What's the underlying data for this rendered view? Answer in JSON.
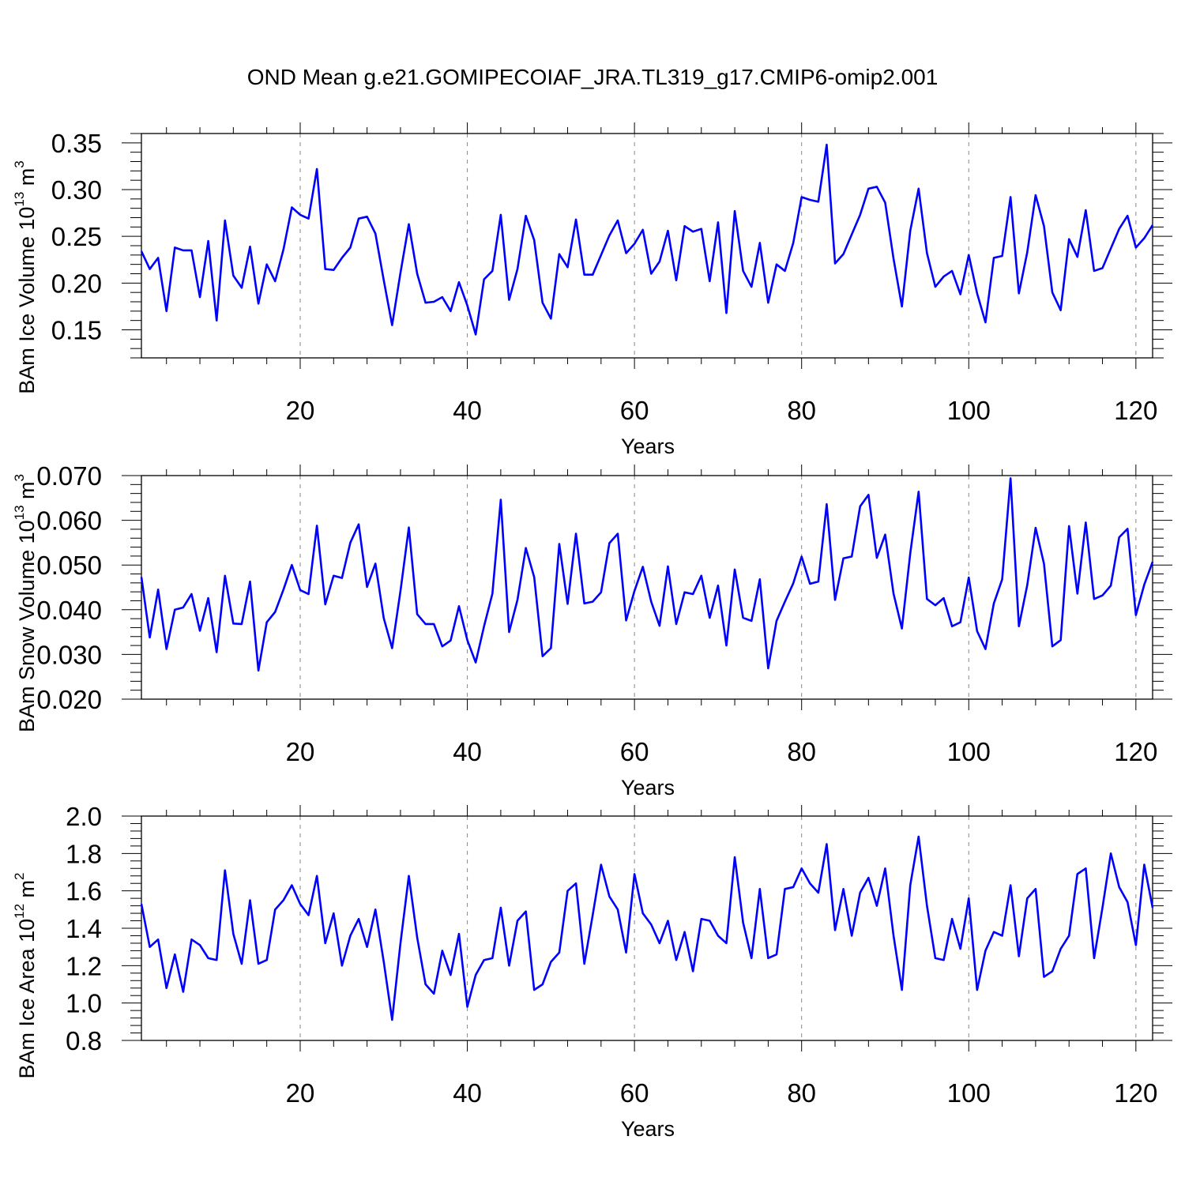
{
  "chart_data": [
    {
      "type": "line",
      "title": "OND Mean g.e21.GOMIPECOIAF_JRA.TL319_g17.CMIP6-omip2.001",
      "xlabel": "Years",
      "ylabel": {
        "main": "BAm Ice Volume 10",
        "exp": "13",
        "unit": " m",
        "unit_exp": "3"
      },
      "xlim": [
        1,
        122
      ],
      "ylim": [
        0.12,
        0.36
      ],
      "xticks": [
        "20",
        "40",
        "60",
        "80",
        "100",
        "120"
      ],
      "yticks": [
        "0.15",
        "0.20",
        "0.25",
        "0.30",
        "0.35"
      ],
      "grid": "dashed vertical at major x ticks",
      "series": [
        {
          "name": "BAm Ice Volume",
          "color": "#0000ff",
          "values": [
            0.234,
            0.215,
            0.227,
            0.17,
            0.238,
            0.235,
            0.235,
            0.185,
            0.245,
            0.16,
            0.267,
            0.208,
            0.195,
            0.239,
            0.178,
            0.22,
            0.202,
            0.236,
            0.281,
            0.273,
            0.269,
            0.322,
            0.215,
            0.214,
            0.227,
            0.238,
            0.269,
            0.271,
            0.253,
            0.203,
            0.155,
            0.211,
            0.263,
            0.21,
            0.179,
            0.18,
            0.185,
            0.17,
            0.201,
            0.176,
            0.145,
            0.204,
            0.213,
            0.273,
            0.182,
            0.215,
            0.272,
            0.246,
            0.179,
            0.162,
            0.231,
            0.217,
            0.268,
            0.209,
            0.209,
            0.23,
            0.251,
            0.267,
            0.232,
            0.242,
            0.257,
            0.21,
            0.223,
            0.256,
            0.203,
            0.261,
            0.255,
            0.258,
            0.202,
            0.265,
            0.168,
            0.277,
            0.213,
            0.196,
            0.243,
            0.179,
            0.22,
            0.213,
            0.243,
            0.292,
            0.289,
            0.287,
            0.348,
            0.221,
            0.231,
            0.252,
            0.273,
            0.301,
            0.303,
            0.286,
            0.226,
            0.175,
            0.256,
            0.301,
            0.232,
            0.196,
            0.207,
            0.213,
            0.188,
            0.23,
            0.189,
            0.158,
            0.227,
            0.229,
            0.292,
            0.189,
            0.233,
            0.294,
            0.261,
            0.19,
            0.171,
            0.247,
            0.228,
            0.278,
            0.213,
            0.216,
            0.237,
            0.258,
            0.272,
            0.238,
            0.248,
            0.262
          ]
        }
      ]
    },
    {
      "type": "line",
      "xlabel": "Years",
      "ylabel": {
        "main": "BAm Snow Volume 10",
        "exp": "13",
        "unit": " m",
        "unit_exp": "3"
      },
      "xlim": [
        1,
        122
      ],
      "ylim": [
        0.02,
        0.07
      ],
      "xticks": [
        "20",
        "40",
        "60",
        "80",
        "100",
        "120"
      ],
      "yticks": [
        "0.020",
        "0.030",
        "0.040",
        "0.050",
        "0.060",
        "0.070"
      ],
      "grid": "dashed vertical at major x ticks",
      "series": [
        {
          "name": "BAm Snow Volume",
          "color": "#0000ff",
          "values": [
            0.0473,
            0.0338,
            0.0445,
            0.0312,
            0.04,
            0.0405,
            0.0435,
            0.0353,
            0.0426,
            0.0305,
            0.0476,
            0.0369,
            0.0368,
            0.0463,
            0.0264,
            0.0372,
            0.0395,
            0.0445,
            0.05,
            0.0444,
            0.0435,
            0.0588,
            0.0412,
            0.0476,
            0.0471,
            0.055,
            0.0591,
            0.0451,
            0.0503,
            0.0381,
            0.0314,
            0.0442,
            0.0584,
            0.039,
            0.0368,
            0.0368,
            0.0318,
            0.0331,
            0.0408,
            0.0332,
            0.0282,
            0.0363,
            0.0436,
            0.0646,
            0.035,
            0.0422,
            0.0538,
            0.0473,
            0.0296,
            0.0314,
            0.0547,
            0.0413,
            0.057,
            0.0414,
            0.0418,
            0.0439,
            0.0549,
            0.057,
            0.0376,
            0.0442,
            0.0496,
            0.0418,
            0.0364,
            0.0497,
            0.0368,
            0.0439,
            0.0435,
            0.0476,
            0.0382,
            0.0454,
            0.032,
            0.049,
            0.0382,
            0.0375,
            0.0468,
            0.0269,
            0.0375,
            0.0418,
            0.0459,
            0.0519,
            0.0458,
            0.0463,
            0.0636,
            0.0422,
            0.0515,
            0.0519,
            0.0631,
            0.0657,
            0.0516,
            0.0568,
            0.0436,
            0.0358,
            0.0526,
            0.0664,
            0.0424,
            0.041,
            0.0426,
            0.0363,
            0.0372,
            0.0472,
            0.0352,
            0.0312,
            0.0414,
            0.0468,
            0.0694,
            0.0363,
            0.0455,
            0.0583,
            0.0503,
            0.0318,
            0.0332,
            0.0587,
            0.0436,
            0.0595,
            0.0424,
            0.0432,
            0.0454,
            0.0562,
            0.0581,
            0.0388,
            0.0456,
            0.0507
          ]
        }
      ]
    },
    {
      "type": "line",
      "xlabel": "Years",
      "ylabel": {
        "main": "BAm Ice Area 10",
        "exp": "12",
        "unit": " m",
        "unit_exp": "2"
      },
      "xlim": [
        1,
        122
      ],
      "ylim": [
        0.8,
        2.0
      ],
      "xticks": [
        "20",
        "40",
        "60",
        "80",
        "100",
        "120"
      ],
      "yticks": [
        "0.8",
        "1.0",
        "1.2",
        "1.4",
        "1.6",
        "1.8",
        "2.0"
      ],
      "grid": "dashed vertical at major x ticks",
      "series": [
        {
          "name": "BAm Ice Area",
          "color": "#0000ff",
          "values": [
            1.53,
            1.3,
            1.34,
            1.08,
            1.26,
            1.06,
            1.34,
            1.31,
            1.24,
            1.23,
            1.71,
            1.37,
            1.21,
            1.55,
            1.21,
            1.23,
            1.5,
            1.55,
            1.63,
            1.53,
            1.47,
            1.68,
            1.32,
            1.48,
            1.2,
            1.36,
            1.45,
            1.3,
            1.5,
            1.22,
            0.91,
            1.32,
            1.68,
            1.35,
            1.1,
            1.05,
            1.28,
            1.15,
            1.37,
            0.98,
            1.15,
            1.23,
            1.24,
            1.51,
            1.2,
            1.44,
            1.49,
            1.07,
            1.1,
            1.22,
            1.27,
            1.6,
            1.64,
            1.21,
            1.47,
            1.74,
            1.57,
            1.5,
            1.27,
            1.69,
            1.48,
            1.42,
            1.32,
            1.44,
            1.23,
            1.38,
            1.17,
            1.45,
            1.44,
            1.36,
            1.32,
            1.78,
            1.43,
            1.24,
            1.61,
            1.24,
            1.26,
            1.61,
            1.62,
            1.72,
            1.64,
            1.59,
            1.85,
            1.39,
            1.61,
            1.36,
            1.59,
            1.67,
            1.52,
            1.72,
            1.36,
            1.07,
            1.63,
            1.89,
            1.52,
            1.24,
            1.23,
            1.45,
            1.29,
            1.56,
            1.07,
            1.28,
            1.38,
            1.36,
            1.63,
            1.25,
            1.56,
            1.61,
            1.14,
            1.17,
            1.29,
            1.36,
            1.69,
            1.72,
            1.24,
            1.51,
            1.8,
            1.62,
            1.54,
            1.31,
            1.74,
            1.51
          ]
        }
      ]
    }
  ]
}
